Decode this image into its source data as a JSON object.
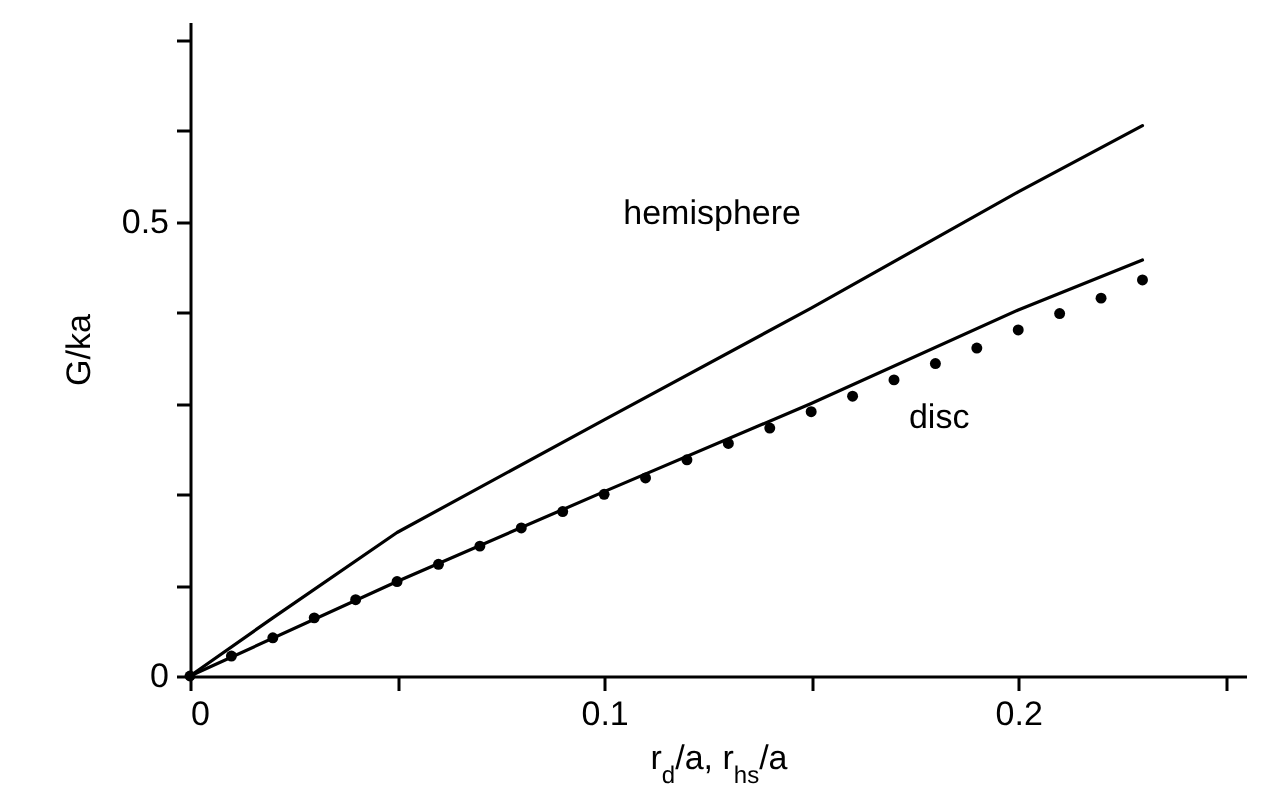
{
  "chart_data": {
    "type": "line",
    "xlabel": "r$_{d}$/a, r$_{hs}$/a",
    "ylabel": "G/ka",
    "xlim": [
      0,
      0.255
    ],
    "xticks": [
      0,
      {
        "value": 0.05,
        "label": null
      },
      0.1,
      {
        "value": 0.15,
        "label": null
      },
      0.2,
      {
        "value": 0.25,
        "label": null
      }
    ],
    "ylim": [
      0,
      0.72
    ],
    "yticks": [
      0,
      {
        "value": 0.1,
        "label": null
      },
      {
        "value": 0.2,
        "label": null
      },
      {
        "value": 0.3,
        "label": null
      },
      {
        "value": 0.4,
        "label": null
      },
      0.5,
      {
        "value": 0.6,
        "label": null
      },
      {
        "value": 0.7,
        "label": null
      }
    ],
    "grid": false,
    "series": [
      {
        "name": "hemisphere",
        "color": "#000000",
        "line_style": "solid",
        "marker": "none",
        "x": [
          0,
          0.02,
          0.05,
          0.1,
          0.15,
          0.2,
          0.23
        ],
        "values": [
          0,
          0.064,
          0.158,
          0.282,
          0.405,
          0.533,
          0.606
        ]
      },
      {
        "name": "disc",
        "color": "#000000",
        "line_style": "solid",
        "marker": "none",
        "x": [
          0,
          0.05,
          0.1,
          0.15,
          0.2,
          0.23
        ],
        "values": [
          0,
          0.104,
          0.203,
          0.3,
          0.403,
          0.458
        ]
      },
      {
        "type": "scatter",
        "color": "#000000",
        "marker": "circle",
        "x": [
          0,
          0.01,
          0.02,
          0.03,
          0.04,
          0.05,
          0.06,
          0.07,
          0.08,
          0.09,
          0.1,
          0.11,
          0.12,
          0.13,
          0.14,
          0.15,
          0.16,
          0.17,
          0.18,
          0.19,
          0.2,
          0.21,
          0.22,
          0.23
        ],
        "values": [
          0,
          0.022,
          0.042,
          0.064,
          0.084,
          0.104,
          0.123,
          0.143,
          0.163,
          0.181,
          0.2,
          0.218,
          0.238,
          0.256,
          0.273,
          0.291,
          0.308,
          0.326,
          0.344,
          0.361,
          0.381,
          0.399,
          0.416,
          0.436
        ]
      }
    ]
  }
}
